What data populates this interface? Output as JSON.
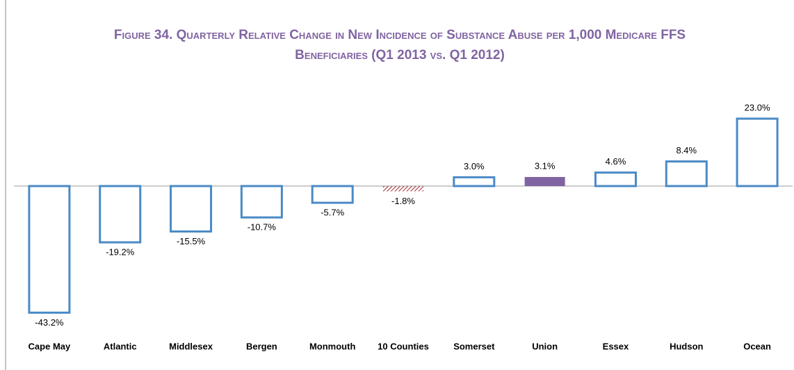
{
  "chart_data": {
    "type": "bar",
    "title": "Figure 34. Quarterly Relative Change in New Incidence of Substance Abuse per 1,000 Medicare FFS Beneficiaries (Q1 2013 vs. Q1 2012)",
    "categories": [
      "Cape May",
      "Atlantic",
      "Middlesex",
      "Bergen",
      "Monmouth",
      "10 Counties",
      "Somerset",
      "Union",
      "Essex",
      "Hudson",
      "Ocean"
    ],
    "values": [
      -43.2,
      -19.2,
      -15.5,
      -10.7,
      -5.7,
      -1.8,
      3.0,
      3.1,
      4.6,
      8.4,
      23.0
    ],
    "value_labels": [
      "-43.2%",
      "-19.2%",
      "-15.5%",
      "-10.7%",
      "-5.7%",
      "-1.8%",
      "3.0%",
      "3.1%",
      "4.6%",
      "8.4%",
      "23.0%"
    ],
    "styles": [
      "outline",
      "outline",
      "outline",
      "outline",
      "outline",
      "hatch",
      "outline",
      "solid",
      "outline",
      "outline",
      "outline"
    ],
    "colors": [
      "#4a8ac6",
      "#4a8ac6",
      "#4a8ac6",
      "#4a8ac6",
      "#4a8ac6",
      "#a0282e",
      "#4a8ac6",
      "#8064a2",
      "#4a8ac6",
      "#4a8ac6",
      "#4a8ac6"
    ],
    "ylim": [
      -45,
      25
    ]
  }
}
